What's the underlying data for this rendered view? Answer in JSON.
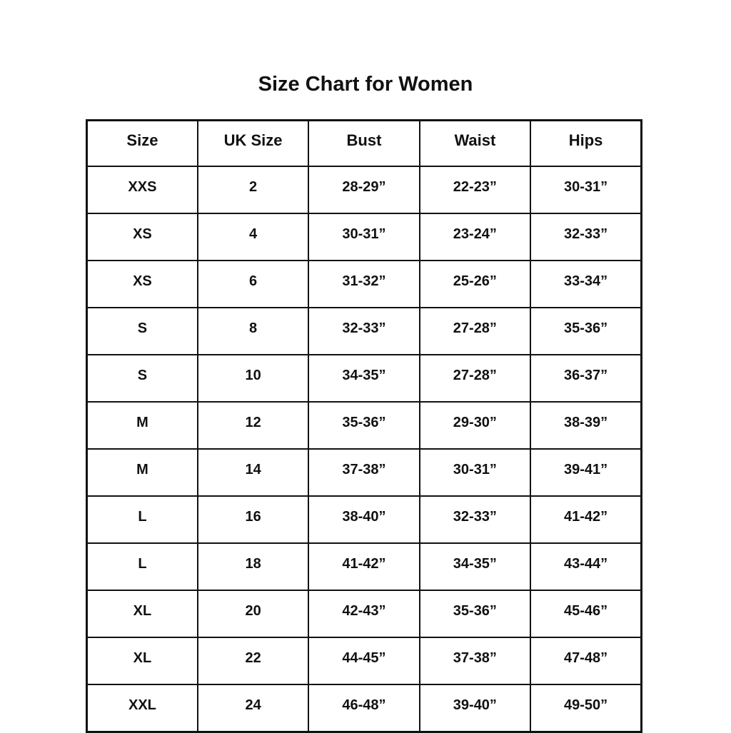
{
  "page": {
    "title": "Size Chart for Women"
  },
  "chart_data": {
    "type": "table",
    "title": "Size Chart for Women",
    "columns": [
      "Size",
      "UK Size",
      "Bust",
      "Waist",
      "Hips"
    ],
    "rows": [
      [
        "XXS",
        "2",
        "28-29”",
        "22-23”",
        "30-31”"
      ],
      [
        "XS",
        "4",
        "30-31”",
        "23-24”",
        "32-33”"
      ],
      [
        "XS",
        "6",
        "31-32”",
        "25-26”",
        "33-34”"
      ],
      [
        "S",
        "8",
        "32-33”",
        "27-28”",
        "35-36”"
      ],
      [
        "S",
        "10",
        "34-35”",
        "27-28”",
        "36-37”"
      ],
      [
        "M",
        "12",
        "35-36”",
        "29-30”",
        "38-39”"
      ],
      [
        "M",
        "14",
        "37-38”",
        "30-31”",
        "39-41”"
      ],
      [
        "L",
        "16",
        "38-40”",
        "32-33”",
        "41-42”"
      ],
      [
        "L",
        "18",
        "41-42”",
        "34-35”",
        "43-44”"
      ],
      [
        "XL",
        "20",
        "42-43”",
        "35-36”",
        "45-46”"
      ],
      [
        "XL",
        "22",
        "44-45”",
        "37-38”",
        "47-48”"
      ],
      [
        "XXL",
        "24",
        "46-48”",
        "39-40”",
        "49-50”"
      ]
    ],
    "layout": {
      "grid": true,
      "border_color": "#111111",
      "background_color": "#ffffff",
      "text_color": "#111111",
      "units_note": "measurements in inches"
    }
  }
}
